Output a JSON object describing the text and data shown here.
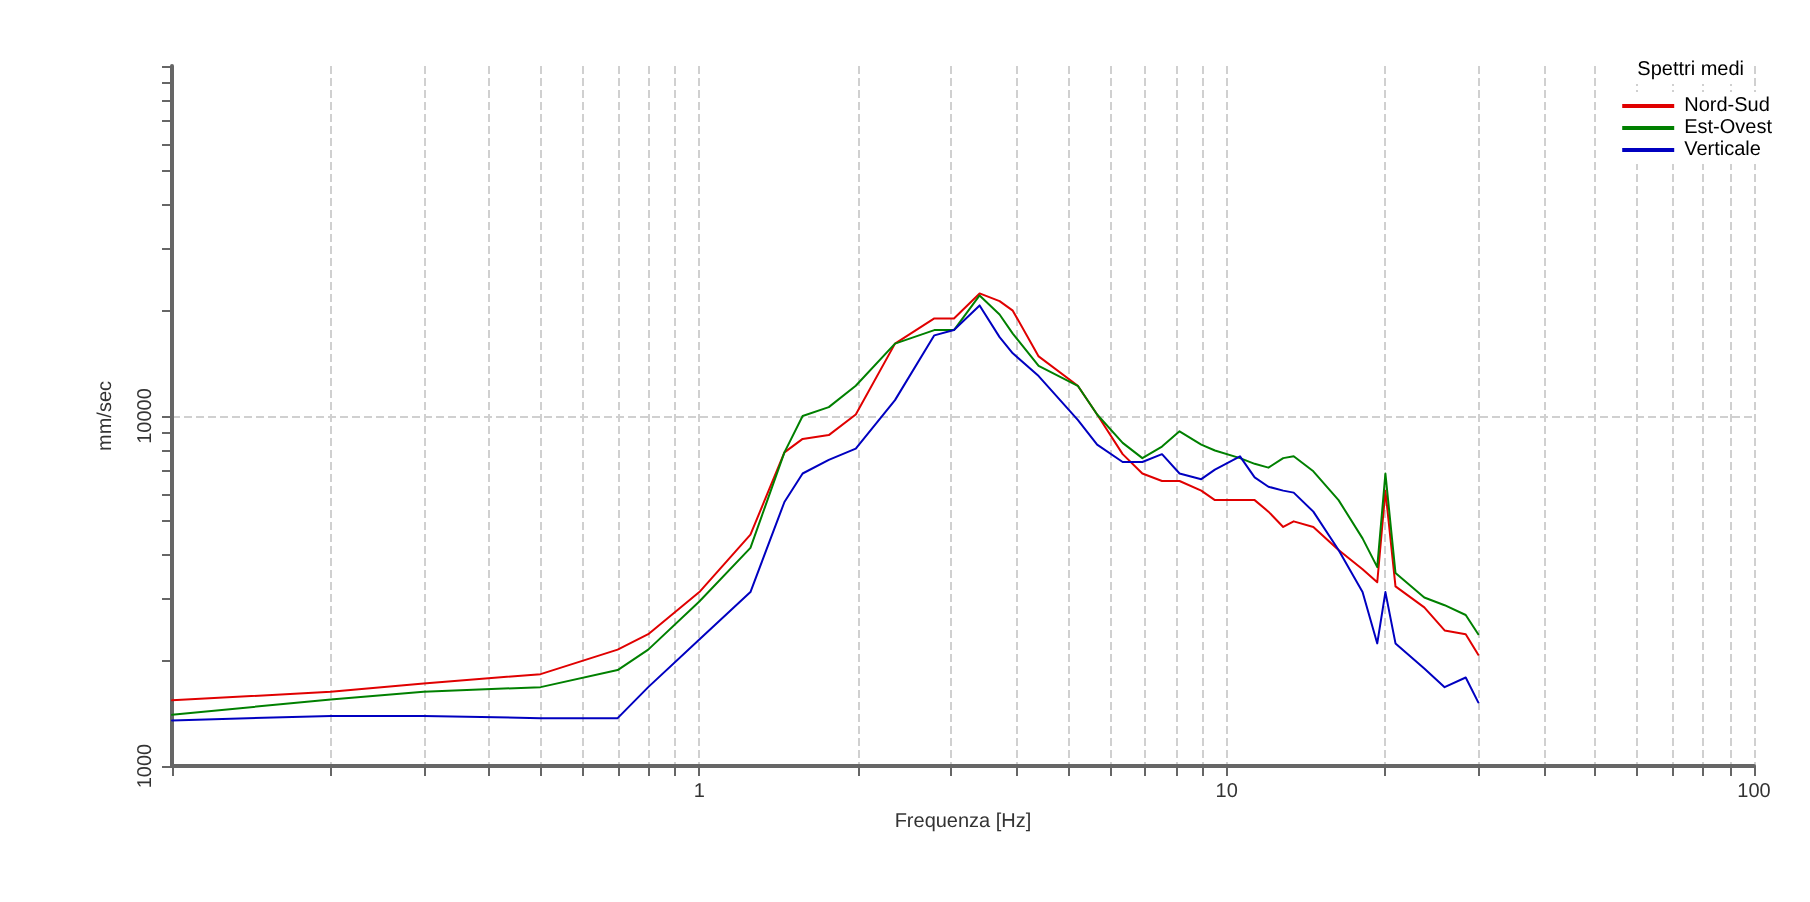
{
  "chart_data": {
    "type": "line",
    "xlabel": "Frequenza [Hz]",
    "ylabel": "mm/sec",
    "legend_title": "Spettri medi",
    "legend": "top right",
    "grid": true,
    "log": "xy",
    "xlim": [
      0.1,
      100
    ],
    "ylim": [
      1000,
      100000
    ],
    "xticks": [
      {
        "value": 0.1,
        "label": null
      },
      {
        "value": 0.2,
        "label": null
      },
      {
        "value": 0.3,
        "label": null
      },
      {
        "value": 0.4,
        "label": null
      },
      {
        "value": 0.5,
        "label": null
      },
      {
        "value": 0.6,
        "label": null
      },
      {
        "value": 0.7,
        "label": null
      },
      {
        "value": 0.8,
        "label": null
      },
      {
        "value": 0.9,
        "label": null
      },
      1,
      {
        "value": 2,
        "label": null
      },
      {
        "value": 3,
        "label": null
      },
      {
        "value": 4,
        "label": null
      },
      {
        "value": 5,
        "label": null
      },
      {
        "value": 6,
        "label": null
      },
      {
        "value": 7,
        "label": null
      },
      {
        "value": 8,
        "label": null
      },
      {
        "value": 9,
        "label": null
      },
      10,
      {
        "value": 20,
        "label": null
      },
      {
        "value": 30,
        "label": null
      },
      {
        "value": 40,
        "label": null
      },
      {
        "value": 50,
        "label": null
      },
      {
        "value": 60,
        "label": null
      },
      {
        "value": 70,
        "label": null
      },
      {
        "value": 80,
        "label": null
      },
      {
        "value": 90,
        "label": null
      },
      100
    ],
    "yticks": [
      1000,
      {
        "value": 2000,
        "label": null
      },
      {
        "value": 3000,
        "label": null
      },
      {
        "value": 4000,
        "label": null
      },
      {
        "value": 5000,
        "label": null
      },
      {
        "value": 6000,
        "label": null
      },
      {
        "value": 7000,
        "label": null
      },
      {
        "value": 8000,
        "label": null
      },
      {
        "value": 9000,
        "label": null
      },
      10000,
      {
        "value": 20000,
        "label": null
      },
      {
        "value": 30000,
        "label": null
      },
      {
        "value": 40000,
        "label": null
      },
      {
        "value": 50000,
        "label": null
      },
      {
        "value": 60000,
        "label": null
      },
      {
        "value": 70000,
        "label": null
      },
      {
        "value": 80000,
        "label": null
      },
      {
        "value": 90000,
        "label": null
      },
      {
        "value": 100000,
        "label": null
      }
    ],
    "x": [
      0.1,
      0.2,
      0.3,
      0.5,
      0.7,
      0.8,
      1,
      1.25,
      1.45,
      1.57,
      1.76,
      1.98,
      2.35,
      2.79,
      3.04,
      3.4,
      3.71,
      3.93,
      4.4,
      5.22,
      5.68,
      6.35,
      6.92,
      7.54,
      8.14,
      8.95,
      9.5,
      10.6,
      11.3,
      12,
      12.8,
      13.4,
      14.6,
      16.3,
      18.1,
      19.3,
      20,
      20.9,
      23.7,
      25.9,
      28.4,
      30
    ],
    "series": [
      {
        "name": "Nord-Sud",
        "color": "#e00000",
        "values": [
          1540,
          1630,
          1720,
          1830,
          2150,
          2380,
          3140,
          4580,
          7870,
          8600,
          8820,
          10100,
          16100,
          19000,
          19000,
          22400,
          21300,
          20000,
          14800,
          12200,
          10100,
          7780,
          6850,
          6520,
          6520,
          6120,
          5750,
          5750,
          5750,
          5330,
          4820,
          5000,
          4820,
          4140,
          3650,
          3350,
          6120,
          3260,
          2840,
          2440,
          2380,
          2080
        ]
      },
      {
        "name": "Est-Ovest",
        "color": "#008000",
        "values": [
          1400,
          1550,
          1630,
          1680,
          1880,
          2150,
          2950,
          4200,
          7870,
          10000,
          10600,
          12200,
          16100,
          17600,
          17600,
          22100,
          19500,
          17200,
          13900,
          12200,
          10100,
          8380,
          7580,
          8180,
          9040,
          8280,
          7970,
          7580,
          7300,
          7120,
          7580,
          7670,
          6950,
          5750,
          4470,
          3700,
          6850,
          3560,
          3030,
          2880,
          2700,
          2380
        ]
      },
      {
        "name": "Verticale",
        "color": "#0000c0",
        "values": [
          1350,
          1390,
          1390,
          1370,
          1370,
          1680,
          2300,
          3140,
          5680,
          6850,
          7490,
          8070,
          11100,
          17000,
          17600,
          20700,
          16800,
          15100,
          13000,
          9750,
          8280,
          7390,
          7390,
          7780,
          6850,
          6600,
          7030,
          7670,
          6680,
          6280,
          6120,
          6040,
          5330,
          4140,
          3140,
          2240,
          3140,
          2240,
          1900,
          1680,
          1790,
          1520
        ]
      }
    ]
  }
}
